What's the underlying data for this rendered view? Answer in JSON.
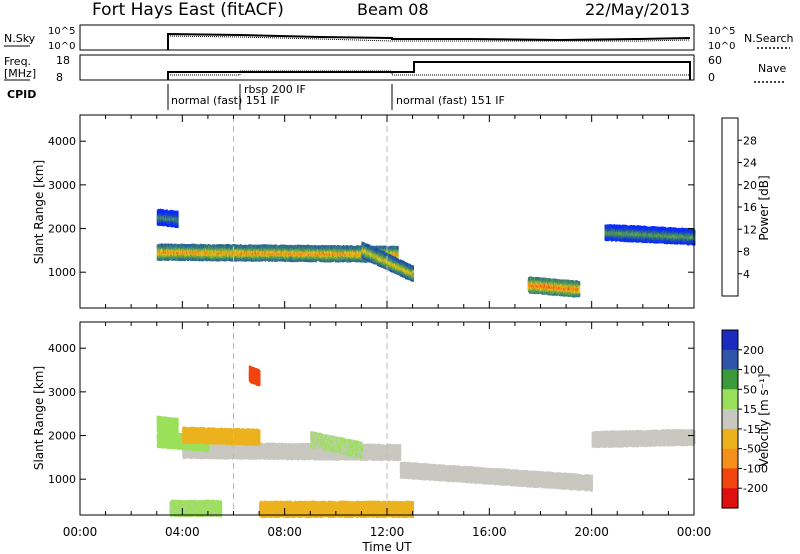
{
  "header": {
    "title": "Fort Hays East (fitACF)",
    "beam": "Beam 08",
    "date": "22/May/2013"
  },
  "params_panel": {
    "nsky_label": "N.Sky",
    "nsky_ticks": [
      "10^5",
      "10^0"
    ],
    "nsearch_label": "N.Search",
    "nsearch_ticks": [
      "10^5",
      "10^0"
    ],
    "freq_label": "Freq.",
    "freq_unit": "[MHz]",
    "freq_ticks": [
      "18",
      "8"
    ],
    "nave_label": "Nave",
    "nave_ticks": [
      "60",
      "0"
    ],
    "cpid_label": "CPID",
    "cpid_segments": [
      {
        "label": "normal (fast) 151 IF"
      },
      {
        "label": "rbsp 200 IF"
      },
      {
        "label": "normal (fast) 151 IF"
      }
    ]
  },
  "colors": {
    "power_scale": [
      "#0a2bff",
      "#1f4fa6",
      "#2e6f8e",
      "#4a8e63",
      "#6fae43",
      "#e3c51a",
      "#f58f1a",
      "#f24a12",
      "#e01010"
    ],
    "velocity_scale": [
      "#e01010",
      "#f2440f",
      "#f5901a",
      "#ebb21e",
      "#c8c8c0",
      "#9be05a",
      "#3a9a3a",
      "#2f55a8",
      "#1a2bbf"
    ],
    "ground_scatter": "#c8c8c0"
  },
  "chart_data": [
    {
      "type": "heatmap",
      "title": "",
      "xlabel": "Time UT",
      "ylabel": "Slant Range [km]",
      "x_ticks": [
        "00:00",
        "04:00",
        "08:00",
        "12:00",
        "16:00",
        "20:00",
        "00:00"
      ],
      "y_ticks": [
        "1000",
        "2000",
        "3000",
        "4000"
      ],
      "xlim_hours": [
        0,
        24
      ],
      "ylim_km": [
        180,
        4600
      ],
      "colorbar": {
        "label": "Power [dB]",
        "ticks": [
          "4",
          "8",
          "12",
          "16",
          "20",
          "24",
          "28"
        ],
        "range": [
          0,
          30
        ]
      },
      "features": [
        {
          "t0": 3.0,
          "t1": 12.4,
          "range_km_start": 1450,
          "range_km_end": 1400,
          "value_db": 22
        },
        {
          "t0": 11.0,
          "t1": 13.0,
          "range_km_start": 1500,
          "range_km_end": 950,
          "value_db": 20
        },
        {
          "t0": 17.5,
          "t1": 19.5,
          "range_km_start": 700,
          "range_km_end": 600,
          "value_db": 24
        },
        {
          "t0": 20.5,
          "t1": 24.0,
          "range_km_start": 1900,
          "range_km_end": 1800,
          "value_db": 14
        },
        {
          "t0": 3.0,
          "t1": 3.8,
          "range_km_start": 2250,
          "range_km_end": 2200,
          "value_db": 12
        }
      ]
    },
    {
      "type": "heatmap",
      "title": "",
      "xlabel": "Time UT",
      "ylabel": "Slant Range [km]",
      "x_ticks": [
        "00:00",
        "04:00",
        "08:00",
        "12:00",
        "16:00",
        "20:00",
        "00:00"
      ],
      "y_ticks": [
        "1000",
        "2000",
        "3000",
        "4000"
      ],
      "xlim_hours": [
        0,
        24
      ],
      "ylim_km": [
        180,
        4600
      ],
      "colorbar": {
        "label": "Velocity [m s⁻¹]",
        "ticks": [
          "200",
          "100",
          "50",
          "15",
          "-15",
          "-50",
          "-100",
          "-200"
        ],
        "range": [
          -250,
          250
        ]
      },
      "features": [
        {
          "t0": 4.0,
          "t1": 12.5,
          "range_km_start": 1650,
          "range_km_end": 1600,
          "value_ms": 0,
          "ground_scatter": true
        },
        {
          "t0": 12.5,
          "t1": 20.0,
          "range_km_start": 1200,
          "range_km_end": 900,
          "value_ms": 0,
          "ground_scatter": true
        },
        {
          "t0": 20.0,
          "t1": 24.0,
          "range_km_start": 1900,
          "range_km_end": 1950,
          "value_ms": 0,
          "ground_scatter": true
        },
        {
          "t0": 3.0,
          "t1": 5.0,
          "range_km_start": 1900,
          "range_km_end": 1800,
          "value_ms": 60
        },
        {
          "t0": 3.0,
          "t1": 3.8,
          "range_km_start": 2250,
          "range_km_end": 2200,
          "value_ms": 40
        },
        {
          "t0": 9.0,
          "t1": 11.0,
          "range_km_start": 1900,
          "range_km_end": 1650,
          "value_ms": 30
        },
        {
          "t0": 4.0,
          "t1": 7.0,
          "range_km_start": 2000,
          "range_km_end": 1950,
          "value_ms": -45
        },
        {
          "t0": 6.6,
          "t1": 7.0,
          "range_km_start": 3400,
          "range_km_end": 3300,
          "value_ms": -150
        },
        {
          "t0": 7.0,
          "t1": 13.0,
          "range_km_start": 300,
          "range_km_end": 300,
          "value_ms": -40
        },
        {
          "t0": 3.5,
          "t1": 5.5,
          "range_km_start": 320,
          "range_km_end": 320,
          "value_ms": 35
        }
      ]
    }
  ]
}
